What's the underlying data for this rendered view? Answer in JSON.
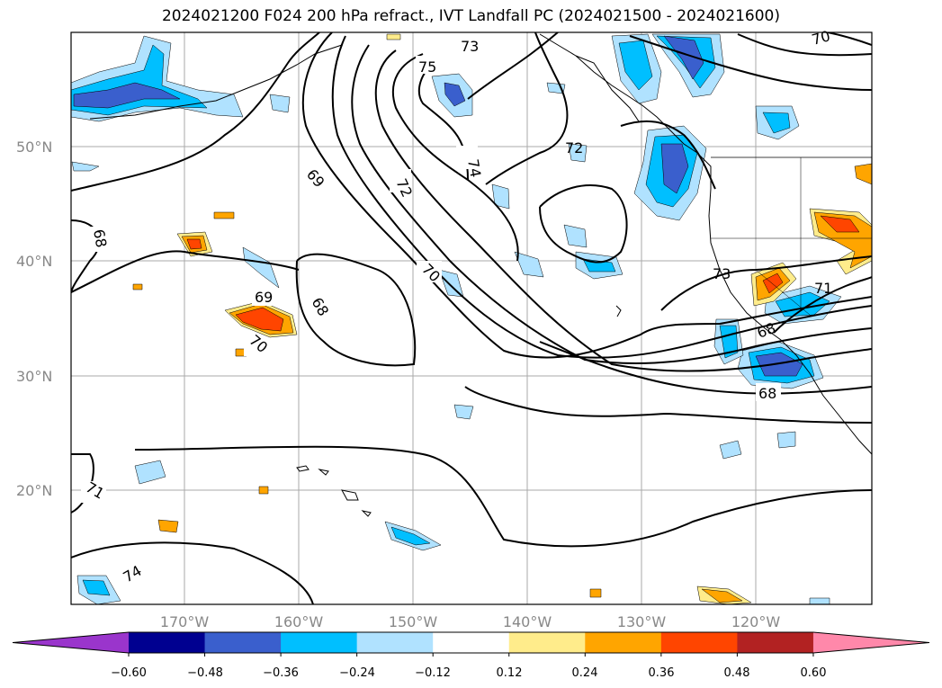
{
  "title": "2024021200 F024 200 hPa refract., IVT Landfall PC (2024021500 - 2024021600)",
  "map": {
    "lat_labels": [
      "50°N",
      "40°N",
      "30°N",
      "20°N"
    ],
    "lon_labels": [
      "170°W",
      "160°W",
      "150°W",
      "140°W",
      "130°W",
      "120°W"
    ]
  },
  "contour_labels": [
    "73",
    "75",
    "74",
    "72",
    "69",
    "68",
    "70",
    "68",
    "69",
    "70",
    "71",
    "74",
    "72",
    "73",
    "71",
    "68",
    "68",
    "70"
  ],
  "colorbar": {
    "colors": [
      "#9a35cc",
      "#000090",
      "#3a5fcd",
      "#00bfff",
      "#b0e2ff",
      "#ffffff",
      "#ffec8b",
      "#ffa500",
      "#ff4500",
      "#b22222",
      "#ff88aa"
    ],
    "ticks": [
      "−0.60",
      "−0.48",
      "−0.36",
      "−0.24",
      "−0.12",
      "0.12",
      "0.24",
      "0.36",
      "0.48",
      "0.60"
    ]
  }
}
